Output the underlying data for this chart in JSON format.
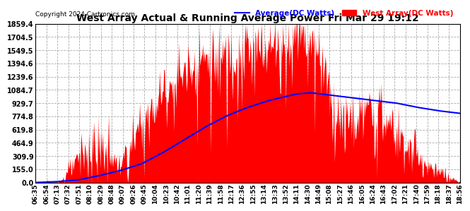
{
  "title": "West Array Actual & Running Average Power Fri Mar 29 19:12",
  "copyright": "Copyright 2024 Cartronics.com",
  "legend_avg": "Average(DC Watts)",
  "legend_west": "West Array(DC Watts)",
  "yticks": [
    0.0,
    155.0,
    309.9,
    464.9,
    619.8,
    774.8,
    929.7,
    1084.7,
    1239.6,
    1394.6,
    1549.5,
    1704.5,
    1859.4
  ],
  "ymax": 1859.4,
  "xtick_labels": [
    "06:35",
    "06:54",
    "07:13",
    "07:32",
    "07:51",
    "08:10",
    "08:29",
    "08:48",
    "09:07",
    "09:26",
    "09:45",
    "10:04",
    "10:23",
    "10:42",
    "11:01",
    "11:20",
    "11:39",
    "11:58",
    "12:17",
    "12:36",
    "12:55",
    "13:14",
    "13:33",
    "13:52",
    "14:11",
    "14:30",
    "14:49",
    "15:08",
    "15:27",
    "15:46",
    "16:05",
    "16:24",
    "16:43",
    "17:02",
    "17:21",
    "17:40",
    "17:59",
    "18:18",
    "18:37",
    "18:56"
  ],
  "background_color": "#ffffff",
  "plot_bg_color": "#ffffff",
  "grid_color": "#aaaaaa",
  "red_color": "#ff0000",
  "blue_color": "#0000ff",
  "title_color": "#000000",
  "copyright_color": "#000000",
  "avg_color": "#0000ff",
  "west_color": "#ff0000",
  "envelope_x": [
    0.0,
    0.04,
    0.06,
    0.09,
    0.11,
    0.13,
    0.16,
    0.2,
    0.25,
    0.3,
    0.35,
    0.4,
    0.45,
    0.5,
    0.55,
    0.58,
    0.6,
    0.62,
    0.65,
    0.68,
    0.7,
    0.72,
    0.75,
    0.78,
    0.82,
    0.85,
    0.88,
    0.92,
    0.96,
    1.0
  ],
  "envelope_y": [
    0,
    5,
    20,
    200,
    350,
    420,
    380,
    200,
    700,
    1050,
    1300,
    1450,
    1500,
    1550,
    1600,
    1650,
    1700,
    1850,
    1600,
    1400,
    900,
    700,
    750,
    800,
    750,
    600,
    400,
    200,
    80,
    5
  ],
  "avg_x": [
    0.0,
    0.05,
    0.1,
    0.15,
    0.2,
    0.25,
    0.3,
    0.35,
    0.4,
    0.45,
    0.5,
    0.55,
    0.6,
    0.62,
    0.65,
    0.7,
    0.75,
    0.8,
    0.85,
    0.9,
    0.95,
    1.0
  ],
  "avg_y": [
    0,
    10,
    30,
    80,
    140,
    220,
    350,
    500,
    650,
    780,
    880,
    960,
    1020,
    1040,
    1050,
    1020,
    990,
    960,
    930,
    880,
    840,
    810
  ]
}
